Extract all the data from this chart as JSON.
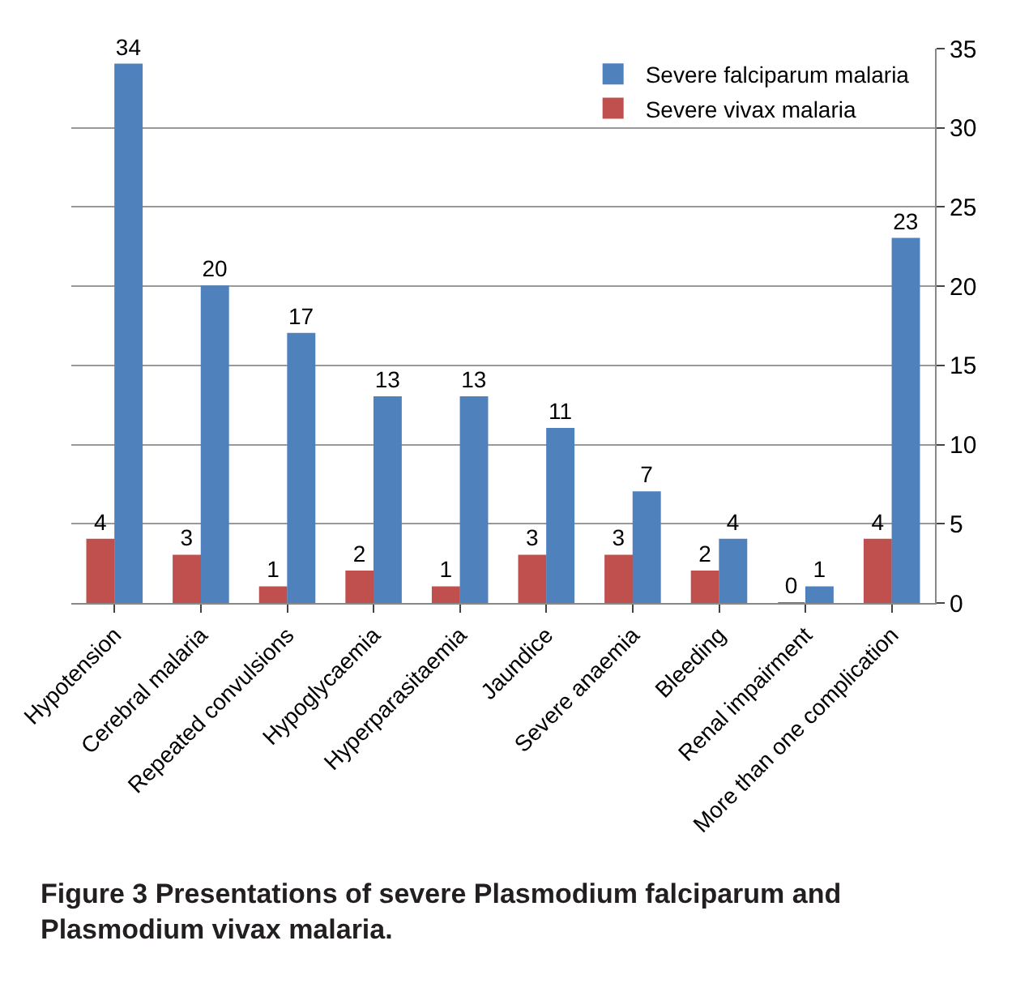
{
  "chart_data": {
    "type": "bar",
    "categories": [
      "Hypotension",
      "Cerebral malaria",
      "Repeated convulsions",
      "Hypoglycaemia",
      "Hyperparasitaemia",
      "Jaundice",
      "Severe anaemia",
      "Bleeding",
      "Renal impairment",
      "More than one complication"
    ],
    "series": [
      {
        "name": "Severe vivax malaria",
        "color": "#c0504d",
        "values": [
          4,
          3,
          1,
          2,
          1,
          3,
          3,
          2,
          0,
          4
        ]
      },
      {
        "name": "Severe falciparum malaria",
        "color": "#4f81bd",
        "values": [
          34,
          20,
          17,
          13,
          13,
          11,
          7,
          4,
          1,
          23
        ]
      }
    ],
    "ylim": [
      0,
      35
    ],
    "yticks": [
      0,
      5,
      10,
      15,
      20,
      25,
      30,
      35
    ],
    "grid": "y",
    "legend": "top right",
    "data_labels": true,
    "annotations": [
      "Figure 3 Presentations of severe Plasmodium falciparum and Plasmodium vivax malaria."
    ]
  }
}
